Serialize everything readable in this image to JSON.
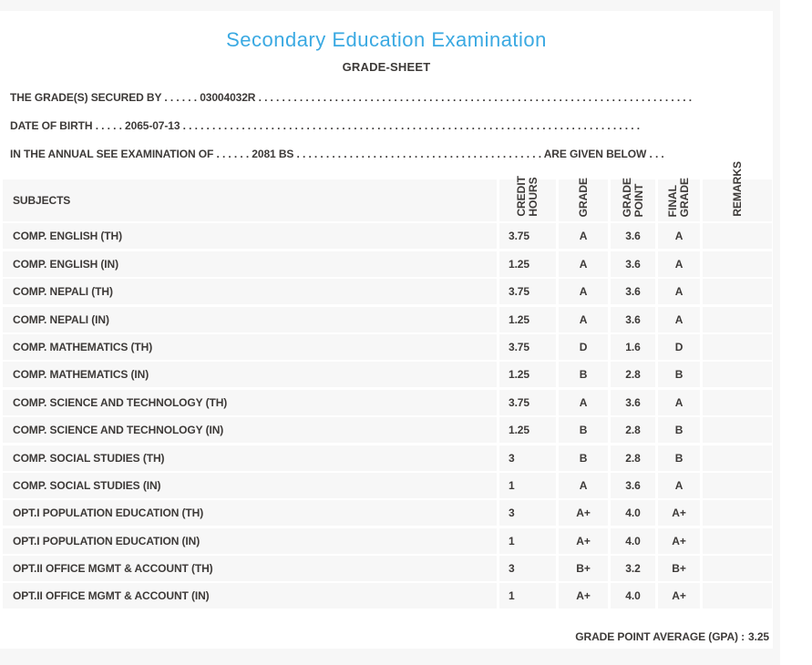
{
  "colors": {
    "accent_blue": "#3aa9e2",
    "text_dark": "#3d3a38",
    "cell_background": "#f7f7f7",
    "page_background": "#ffffff"
  },
  "header": {
    "title": "Secondary Education Examination",
    "subtitle": "GRADE-SHEET"
  },
  "info": {
    "grades_secured_by": "THE GRADE(S) SECURED BY . . . . . . 03004032R . . . . . . . . . . . . . . . . . . . . . . . . . . . . . . . . . . . . . . . . . . . . . . . . . . . . . . . . . . . . . . . . . . . . . . . . . .",
    "date_of_birth": "DATE OF BIRTH . . . . . 2065-07-13 . . . . . . . . . . . . . . . . . . . . . . . . . . . . . . . . . . . . . . . . . . . . . . . . . . . . . . . . . . . . . . . . . . . . . . . . . . . . . .",
    "examination": "IN THE ANNUAL SEE EXAMINATION OF . . . . . . 2081 BS . . . . . . . . . . . . . . . . . . . . . . . . . . . . . . . . . . . . . . . . . . ARE GIVEN BELOW . . ."
  },
  "table": {
    "columns": [
      {
        "key": "subject",
        "label": "SUBJECTS"
      },
      {
        "key": "credit_hours",
        "label": "CREDIT\nHOURS"
      },
      {
        "key": "grade",
        "label": "GRADE"
      },
      {
        "key": "grade_point",
        "label": "GRADE\nPOINT"
      },
      {
        "key": "final_grade",
        "label": "FINAL\nGRADE"
      },
      {
        "key": "remarks",
        "label": "REMARKS"
      }
    ],
    "rows": [
      {
        "subject": "COMP. ENGLISH (TH)",
        "credit_hours": "3.75",
        "grade": "A",
        "grade_point": "3.6",
        "final_grade": "A",
        "remarks": ""
      },
      {
        "subject": "COMP. ENGLISH (IN)",
        "credit_hours": "1.25",
        "grade": "A",
        "grade_point": "3.6",
        "final_grade": "A",
        "remarks": ""
      },
      {
        "subject": "COMP. NEPALI (TH)",
        "credit_hours": "3.75",
        "grade": "A",
        "grade_point": "3.6",
        "final_grade": "A",
        "remarks": ""
      },
      {
        "subject": "COMP. NEPALI (IN)",
        "credit_hours": "1.25",
        "grade": "A",
        "grade_point": "3.6",
        "final_grade": "A",
        "remarks": ""
      },
      {
        "subject": "COMP. MATHEMATICS (TH)",
        "credit_hours": "3.75",
        "grade": "D",
        "grade_point": "1.6",
        "final_grade": "D",
        "remarks": ""
      },
      {
        "subject": "COMP. MATHEMATICS (IN)",
        "credit_hours": "1.25",
        "grade": "B",
        "grade_point": "2.8",
        "final_grade": "B",
        "remarks": ""
      },
      {
        "subject": "COMP. SCIENCE AND TECHNOLOGY (TH)",
        "credit_hours": "3.75",
        "grade": "A",
        "grade_point": "3.6",
        "final_grade": "A",
        "remarks": ""
      },
      {
        "subject": "COMP. SCIENCE AND TECHNOLOGY (IN)",
        "credit_hours": "1.25",
        "grade": "B",
        "grade_point": "2.8",
        "final_grade": "B",
        "remarks": ""
      },
      {
        "subject": "COMP. SOCIAL STUDIES (TH)",
        "credit_hours": "3",
        "grade": "B",
        "grade_point": "2.8",
        "final_grade": "B",
        "remarks": ""
      },
      {
        "subject": "COMP. SOCIAL STUDIES (IN)",
        "credit_hours": "1",
        "grade": "A",
        "grade_point": "3.6",
        "final_grade": "A",
        "remarks": ""
      },
      {
        "subject": "OPT.I POPULATION EDUCATION (TH)",
        "credit_hours": "3",
        "grade": "A+",
        "grade_point": "4.0",
        "final_grade": "A+",
        "remarks": ""
      },
      {
        "subject": "OPT.I POPULATION EDUCATION (IN)",
        "credit_hours": "1",
        "grade": "A+",
        "grade_point": "4.0",
        "final_grade": "A+",
        "remarks": ""
      },
      {
        "subject": "OPT.II OFFICE MGMT & ACCOUNT (TH)",
        "credit_hours": "3",
        "grade": "B+",
        "grade_point": "3.2",
        "final_grade": "B+",
        "remarks": ""
      },
      {
        "subject": "OPT.II OFFICE MGMT & ACCOUNT (IN)",
        "credit_hours": "1",
        "grade": "A+",
        "grade_point": "4.0",
        "final_grade": "A+",
        "remarks": ""
      }
    ]
  },
  "summary": {
    "gpa_label": "GRADE POINT AVERAGE (GPA) :",
    "gpa_value": "3.25"
  }
}
